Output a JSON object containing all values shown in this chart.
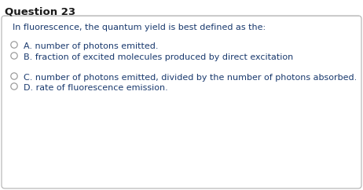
{
  "title": "Question 23",
  "question": "In fluorescence, the quantum yield is best defined as the:",
  "options": [
    "A. number of photons emitted.",
    "B. fraction of excited molecules produced by direct excitation",
    "C. number of photons emitted, divided by the number of photons absorbed.",
    "D. rate of fluorescence emission."
  ],
  "title_color": "#1a1a1a",
  "title_fontsize": 9.5,
  "question_color": "#1a3a6e",
  "question_fontsize": 8.0,
  "option_fontsize": 8.0,
  "text_color": "#1a3a6e",
  "bg_color": "#ffffff",
  "box_edge_color": "#b0b0b0",
  "radio_color": "#999999",
  "title_line_color": "#c0c0c0"
}
